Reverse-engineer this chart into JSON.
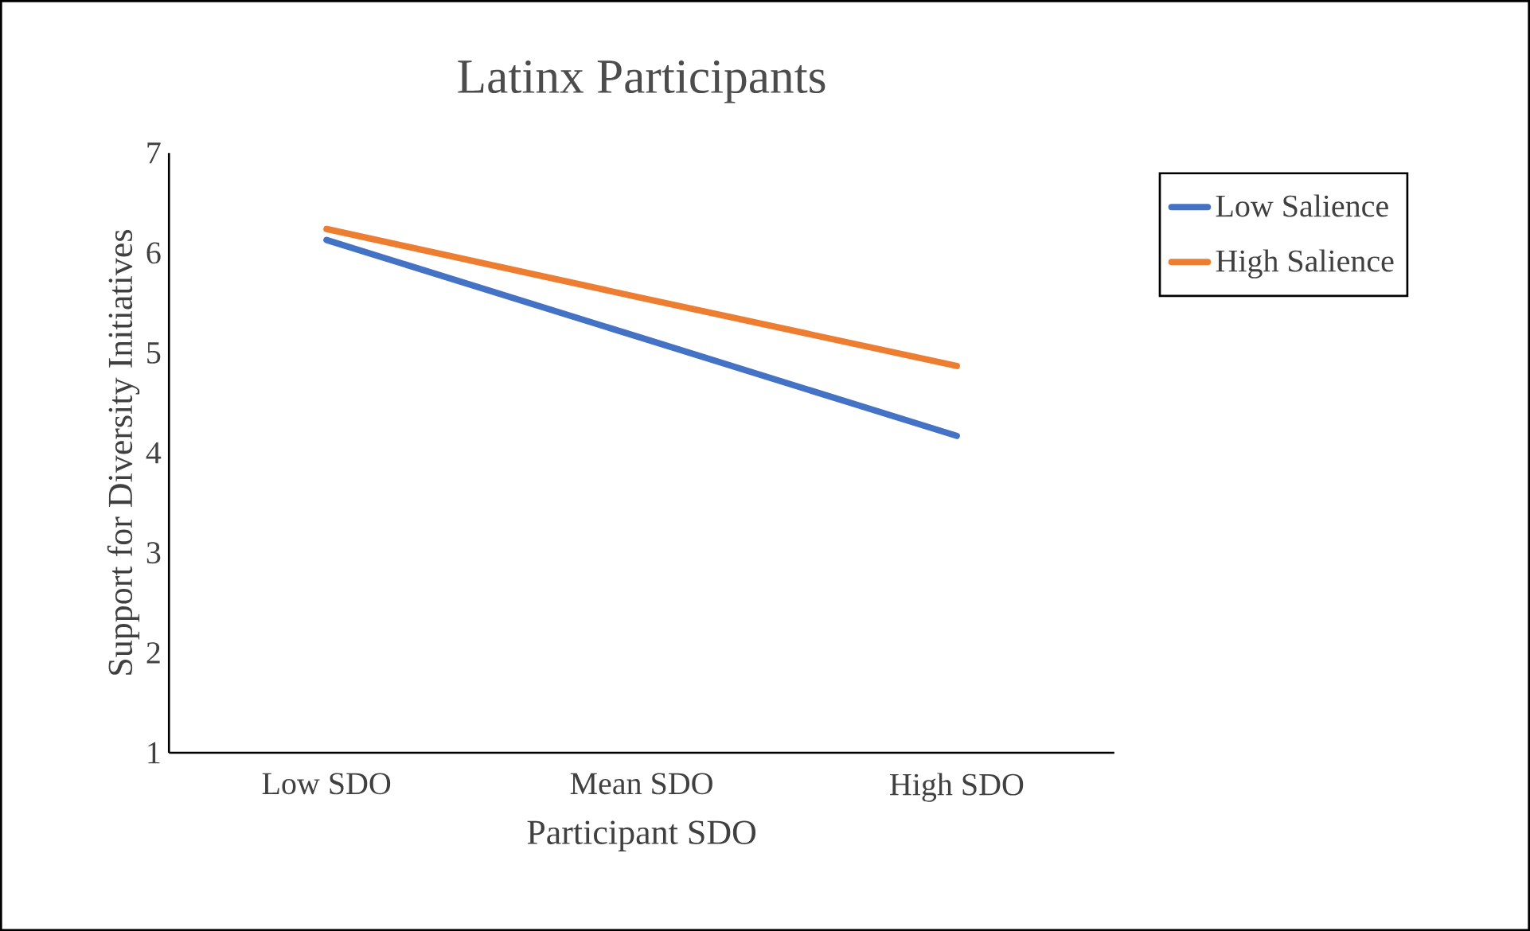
{
  "chart_data": {
    "type": "line",
    "title": "Latinx Participants",
    "xlabel": "Participant SDO",
    "ylabel": "Support for Diversity Initiatives",
    "categories": [
      "Low SDO",
      "Mean SDO",
      "High SDO"
    ],
    "series": [
      {
        "name": "Low Salience",
        "color": "#4472c4",
        "values": [
          6.13,
          5.15,
          4.17
        ]
      },
      {
        "name": "High Salience",
        "color": "#ed7d31",
        "values": [
          6.24,
          5.55,
          4.87
        ]
      }
    ],
    "ylim": [
      1,
      7
    ],
    "yticks": [
      1,
      2,
      3,
      4,
      5,
      6,
      7
    ],
    "legend": "right",
    "marker": "none",
    "line_style": "solid"
  }
}
